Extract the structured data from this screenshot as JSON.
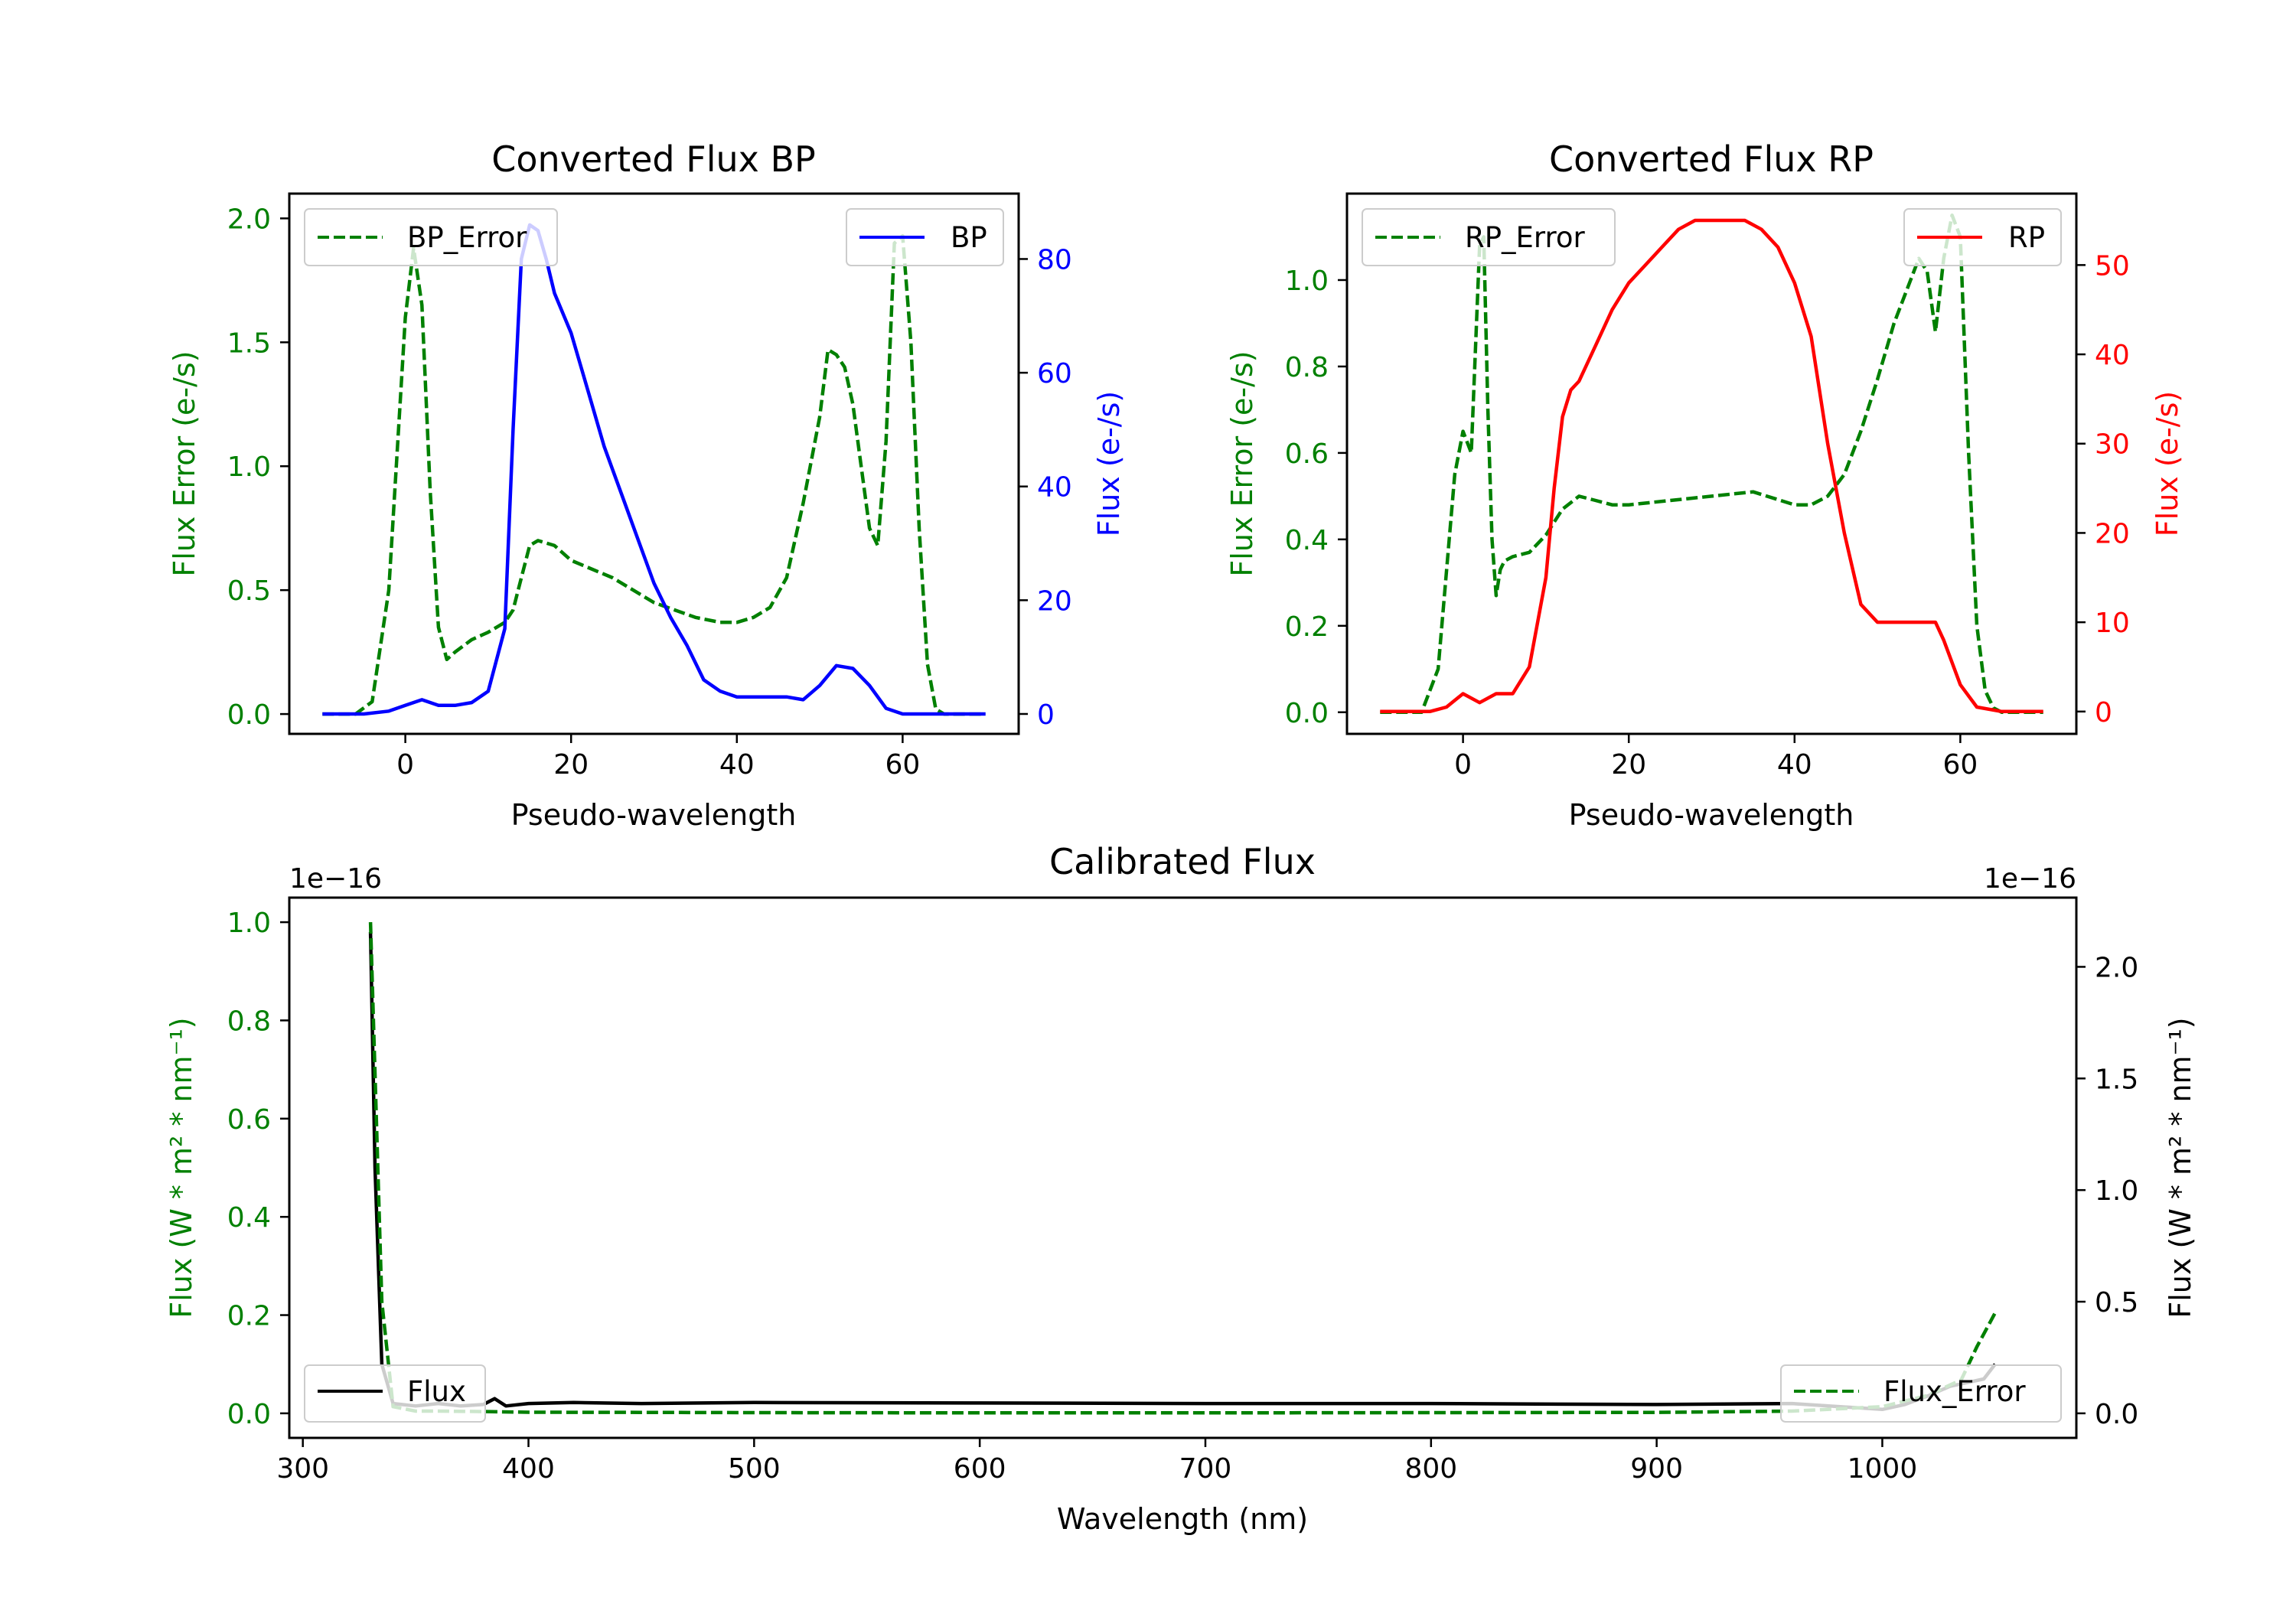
{
  "colors": {
    "green": "#008000",
    "blue": "#0000ff",
    "red": "#ff0000",
    "black": "#000000"
  },
  "chart_data": [
    {
      "type": "line",
      "title": "Converted Flux BP",
      "xlabel": "Pseudo-wavelength",
      "ylabel_left": "Flux Error (e-/s)",
      "ylabel_right": "Flux (e-/s)",
      "xlim": [
        -14,
        74
      ],
      "ylim_left": [
        -0.08,
        2.1
      ],
      "ylim_right": [
        -3.5,
        91.5
      ],
      "xticks": [
        0,
        20,
        40,
        60
      ],
      "xtick_labels": [
        "0",
        "20",
        "40",
        "60"
      ],
      "yticks_left": [
        0.0,
        0.5,
        1.0,
        1.5,
        2.0
      ],
      "ytick_labels_left": [
        "0.0",
        "0.5",
        "1.0",
        "1.5",
        "2.0"
      ],
      "yticks_right": [
        0,
        20,
        40,
        60,
        80
      ],
      "ytick_labels_right": [
        "0",
        "20",
        "40",
        "60",
        "80"
      ],
      "legend_left": "BP_Error",
      "legend_right": "BP",
      "series": [
        {
          "name": "BP_Error",
          "axis": "left",
          "color": "#008000",
          "style": "dashed",
          "x": [
            -10,
            -6,
            -4,
            -2,
            0,
            1,
            2,
            3,
            4,
            5,
            6,
            8,
            10,
            12,
            13,
            14,
            15,
            16,
            18,
            20,
            25,
            30,
            35,
            38,
            40,
            42,
            44,
            46,
            48,
            50,
            51,
            52,
            53,
            54,
            55,
            56,
            57,
            58,
            59,
            60,
            61,
            62,
            63,
            64,
            65,
            70
          ],
          "y": [
            0.0,
            0.0,
            0.05,
            0.5,
            1.6,
            1.88,
            1.65,
            0.9,
            0.35,
            0.22,
            0.25,
            0.3,
            0.33,
            0.37,
            0.42,
            0.55,
            0.68,
            0.7,
            0.68,
            0.62,
            0.55,
            0.45,
            0.39,
            0.37,
            0.37,
            0.39,
            0.43,
            0.55,
            0.85,
            1.2,
            1.47,
            1.45,
            1.4,
            1.25,
            1.0,
            0.75,
            0.68,
            1.1,
            1.9,
            1.93,
            1.5,
            0.75,
            0.2,
            0.02,
            0.0,
            0.0
          ]
        },
        {
          "name": "BP",
          "axis": "right",
          "color": "#0000ff",
          "style": "solid",
          "x": [
            -10,
            -5,
            -2,
            0,
            2,
            4,
            6,
            8,
            10,
            12,
            13,
            14,
            15,
            16,
            17,
            18,
            20,
            22,
            24,
            26,
            28,
            30,
            32,
            34,
            36,
            38,
            40,
            42,
            44,
            46,
            48,
            50,
            52,
            54,
            56,
            58,
            60,
            65,
            70
          ],
          "y": [
            0,
            0,
            0.5,
            1.5,
            2.5,
            1.5,
            1.5,
            2,
            4,
            15,
            50,
            80,
            86,
            85,
            80,
            74,
            67,
            57,
            47,
            39,
            31,
            23,
            17,
            12,
            6,
            4,
            3,
            3,
            3,
            3,
            2.5,
            5,
            8.5,
            8,
            5,
            1,
            0,
            0,
            0
          ]
        }
      ]
    },
    {
      "type": "line",
      "title": "Converted Flux RP",
      "xlabel": "Pseudo-wavelength",
      "ylabel_left": "Flux Error (e-/s)",
      "ylabel_right": "Flux (e-/s)",
      "xlim": [
        -14,
        74
      ],
      "ylim_left": [
        -0.05,
        1.2
      ],
      "ylim_right": [
        -2.5,
        58
      ],
      "xticks": [
        0,
        20,
        40,
        60
      ],
      "xtick_labels": [
        "0",
        "20",
        "40",
        "60"
      ],
      "yticks_left": [
        0.0,
        0.2,
        0.4,
        0.6,
        0.8,
        1.0
      ],
      "ytick_labels_left": [
        "0.0",
        "0.2",
        "0.4",
        "0.6",
        "0.8",
        "1.0"
      ],
      "yticks_right": [
        0,
        10,
        20,
        30,
        40,
        50
      ],
      "ytick_labels_right": [
        "0",
        "10",
        "20",
        "30",
        "40",
        "50"
      ],
      "legend_left": "RP_Error",
      "legend_right": "RP",
      "series": [
        {
          "name": "RP_Error",
          "axis": "left",
          "color": "#008000",
          "style": "dashed",
          "x": [
            -10,
            -5,
            -3,
            -1,
            0,
            1,
            2,
            2.5,
            3,
            3.5,
            4,
            4.5,
            5,
            6,
            8,
            10,
            12,
            14,
            16,
            18,
            20,
            25,
            30,
            35,
            40,
            42,
            44,
            46,
            48,
            50,
            52,
            54,
            55,
            56,
            57,
            58,
            59,
            60,
            61,
            62,
            63,
            64,
            65,
            70
          ],
          "y": [
            0.0,
            0.0,
            0.1,
            0.55,
            0.65,
            0.6,
            1.08,
            1.1,
            0.7,
            0.4,
            0.27,
            0.33,
            0.35,
            0.36,
            0.37,
            0.41,
            0.47,
            0.5,
            0.49,
            0.48,
            0.48,
            0.49,
            0.5,
            0.51,
            0.48,
            0.48,
            0.5,
            0.55,
            0.65,
            0.77,
            0.9,
            1.0,
            1.05,
            1.02,
            0.88,
            1.05,
            1.15,
            1.1,
            0.6,
            0.2,
            0.05,
            0.01,
            0.0,
            0.0
          ]
        },
        {
          "name": "RP",
          "axis": "right",
          "color": "#ff0000",
          "style": "solid",
          "x": [
            -10,
            -4,
            -2,
            0,
            2,
            4,
            6,
            8,
            10,
            11,
            12,
            13,
            14,
            16,
            18,
            20,
            22,
            24,
            26,
            28,
            30,
            32,
            34,
            36,
            38,
            40,
            42,
            44,
            46,
            48,
            50,
            52,
            54,
            56,
            57,
            58,
            60,
            62,
            65,
            70
          ],
          "y": [
            0,
            0,
            0.5,
            2,
            1,
            2,
            2,
            5,
            15,
            25,
            33,
            36,
            37,
            41,
            45,
            48,
            50,
            52,
            54,
            55,
            55,
            55,
            55,
            54,
            52,
            48,
            42,
            30,
            20,
            12,
            10,
            10,
            10,
            10,
            10,
            8,
            3,
            0.5,
            0,
            0
          ]
        }
      ]
    },
    {
      "type": "line",
      "title": "Calibrated Flux",
      "xlabel": "Wavelength (nm)",
      "ylabel_left": "Flux (W * m² * nm⁻¹)",
      "ylabel_right": "Flux (W * m² * nm⁻¹)",
      "offset_left": "1e−16",
      "offset_right": "1e−16",
      "xlim": [
        294,
        1086
      ],
      "ylim_left": [
        -0.05,
        1.05
      ],
      "ylim_right": [
        -0.11,
        2.31
      ],
      "xticks": [
        300,
        400,
        500,
        600,
        700,
        800,
        900,
        1000
      ],
      "xtick_labels": [
        "300",
        "400",
        "500",
        "600",
        "700",
        "800",
        "900",
        "1000"
      ],
      "yticks_left": [
        0.0,
        0.2,
        0.4,
        0.6,
        0.8,
        1.0
      ],
      "ytick_labels_left": [
        "0.0",
        "0.2",
        "0.4",
        "0.6",
        "0.8",
        "1.0"
      ],
      "yticks_right": [
        0.0,
        0.5,
        1.0,
        1.5,
        2.0
      ],
      "ytick_labels_right": [
        "0.0",
        "0.5",
        "1.0",
        "1.5",
        "2.0"
      ],
      "legend_left": "Flux",
      "legend_right": "Flux_Error",
      "series": [
        {
          "name": "Flux",
          "axis": "left",
          "color": "#000000",
          "style": "solid",
          "x": [
            330,
            332,
            335,
            340,
            350,
            360,
            370,
            380,
            385,
            390,
            400,
            420,
            450,
            500,
            600,
            700,
            800,
            900,
            960,
            1000,
            1010,
            1020,
            1030,
            1040,
            1045,
            1050
          ],
          "y": [
            0.98,
            0.5,
            0.1,
            0.02,
            0.015,
            0.02,
            0.015,
            0.018,
            0.03,
            0.015,
            0.02,
            0.022,
            0.02,
            0.022,
            0.021,
            0.02,
            0.02,
            0.018,
            0.02,
            0.008,
            0.018,
            0.035,
            0.055,
            0.065,
            0.07,
            0.1
          ]
        },
        {
          "name": "Flux_Error",
          "axis": "right",
          "color": "#008000",
          "style": "dashed",
          "x": [
            330,
            335,
            340,
            350,
            360,
            380,
            400,
            450,
            500,
            600,
            700,
            800,
            900,
            960,
            1000,
            1020,
            1035,
            1042,
            1050
          ],
          "y": [
            2.2,
            0.5,
            0.03,
            0.01,
            0.01,
            0.008,
            0.005,
            0.004,
            0.003,
            0.002,
            0.002,
            0.003,
            0.004,
            0.01,
            0.03,
            0.08,
            0.15,
            0.3,
            0.45
          ]
        }
      ]
    }
  ]
}
